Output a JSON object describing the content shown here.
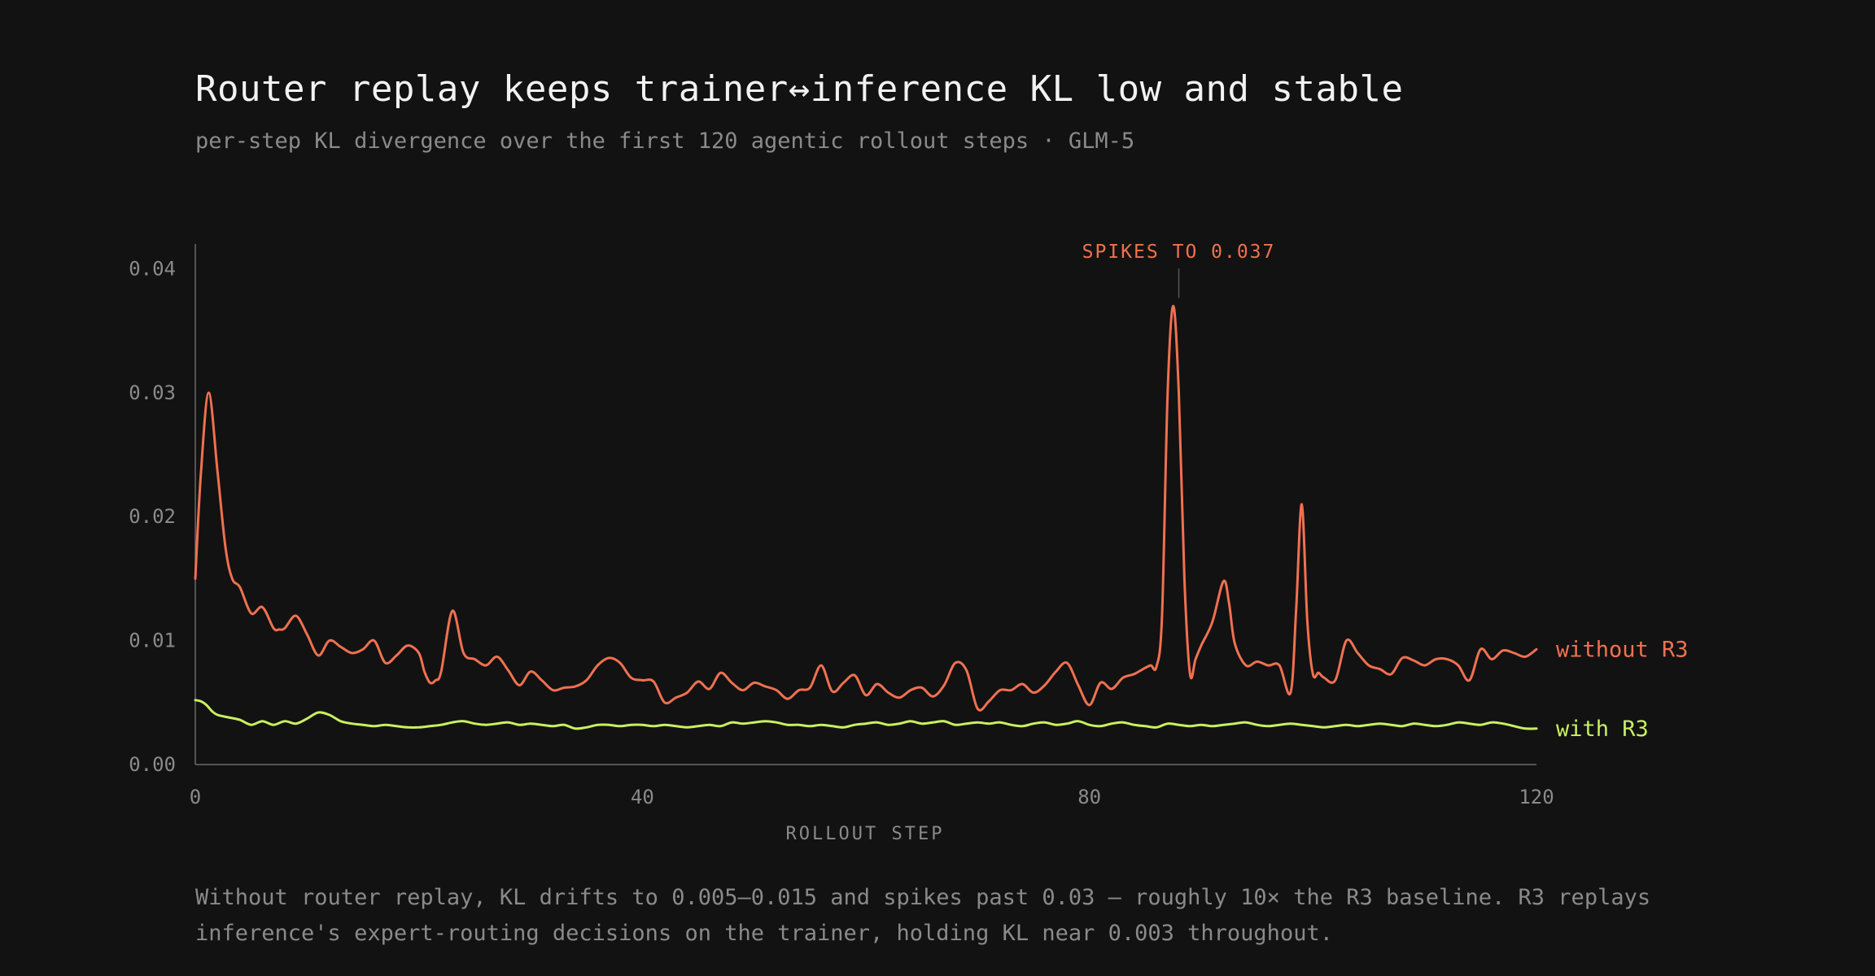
{
  "header": {
    "title": "Router replay keeps trainer↔inference KL low and stable",
    "subtitle": "per-step KL divergence over the first 120 agentic rollout steps · GLM-5"
  },
  "caption": {
    "line1": "Without router replay, KL drifts to 0.005–0.015 and spikes past 0.03 — roughly 10× the R3 baseline. R3 replays",
    "line2": "inference's expert-routing decisions on the trainer, holding KL near 0.003 throughout."
  },
  "colors": {
    "background": "#121212",
    "without_r3": "#f07150",
    "with_r3": "#c8f060",
    "axis": "#6a6a6a",
    "text_muted": "#8a8a8a"
  },
  "chart_data": {
    "type": "line",
    "title": "",
    "xlabel": "ROLLOUT STEP",
    "ylabel": "",
    "xlim": [
      0,
      120
    ],
    "ylim": [
      0,
      0.042
    ],
    "xticks": [
      0,
      40,
      80,
      120
    ],
    "xtick_labels": [
      "0",
      "40",
      "80",
      "120"
    ],
    "yticks": [
      0,
      0.01,
      0.02,
      0.03,
      0.04
    ],
    "ytick_labels": [
      "0.00",
      "0.01",
      "0.02",
      "0.03",
      "0.04"
    ],
    "grid": false,
    "legend": "inline labels at right end of lines",
    "annotation": {
      "text": "SPIKES TO 0.037",
      "x": 88,
      "y": 0.037
    },
    "series": [
      {
        "name": "without R3",
        "x": [
          0,
          0.5,
          1.2,
          2,
          2.7,
          3.3,
          4,
          5,
          6,
          7,
          7.5,
          8,
          9,
          10,
          11,
          12,
          13,
          14,
          15,
          16,
          17,
          18,
          19,
          20,
          20.5,
          21,
          21.5,
          22,
          23,
          24,
          25,
          26,
          27,
          28,
          29,
          30,
          31,
          32,
          33,
          34,
          35,
          36,
          37,
          38,
          39,
          40,
          41,
          42,
          43,
          44,
          45,
          46,
          47,
          48,
          49,
          50,
          51,
          52,
          53,
          54,
          55,
          56,
          57,
          58,
          59,
          60,
          61,
          62,
          63,
          64,
          65,
          66,
          67,
          68,
          69,
          70,
          71,
          72,
          73,
          74,
          75,
          76,
          77,
          78,
          79,
          80,
          81,
          82,
          83,
          84,
          85,
          85.5,
          86,
          86.5,
          87,
          87.5,
          88,
          88.5,
          89,
          89.5,
          90,
          91,
          92,
          92.5,
          93,
          94,
          95,
          96,
          97,
          98,
          98.5,
          99,
          99.5,
          100,
          100.5,
          101,
          102,
          103,
          104,
          105,
          106,
          107,
          108,
          109,
          110,
          111,
          112,
          113,
          114,
          115,
          116,
          117,
          118,
          119,
          120
        ],
        "values": [
          0.015,
          0.0235,
          0.03,
          0.0235,
          0.0175,
          0.015,
          0.0143,
          0.0122,
          0.0127,
          0.011,
          0.0109,
          0.011,
          0.012,
          0.0105,
          0.0088,
          0.01,
          0.0095,
          0.009,
          0.0093,
          0.01,
          0.0082,
          0.0088,
          0.0096,
          0.009,
          0.0075,
          0.0066,
          0.0068,
          0.0075,
          0.0124,
          0.009,
          0.0085,
          0.008,
          0.0087,
          0.0076,
          0.0064,
          0.0075,
          0.0068,
          0.006,
          0.0062,
          0.0063,
          0.0068,
          0.008,
          0.0086,
          0.0082,
          0.007,
          0.0068,
          0.0067,
          0.005,
          0.0054,
          0.0058,
          0.0067,
          0.0061,
          0.0074,
          0.0066,
          0.006,
          0.0066,
          0.0063,
          0.006,
          0.0053,
          0.006,
          0.0062,
          0.008,
          0.0059,
          0.0066,
          0.0072,
          0.0056,
          0.0065,
          0.0058,
          0.0054,
          0.006,
          0.0062,
          0.0055,
          0.0064,
          0.0082,
          0.0076,
          0.0045,
          0.0051,
          0.006,
          0.006,
          0.0065,
          0.0058,
          0.0064,
          0.0075,
          0.0082,
          0.0064,
          0.0048,
          0.0066,
          0.0061,
          0.007,
          0.0073,
          0.0078,
          0.008,
          0.0079,
          0.012,
          0.03,
          0.037,
          0.03,
          0.015,
          0.0073,
          0.0085,
          0.0096,
          0.0115,
          0.0148,
          0.013,
          0.0098,
          0.008,
          0.0083,
          0.008,
          0.008,
          0.0058,
          0.0125,
          0.021,
          0.0115,
          0.0073,
          0.0074,
          0.007,
          0.0068,
          0.01,
          0.009,
          0.008,
          0.0077,
          0.0073,
          0.0086,
          0.0084,
          0.008,
          0.0085,
          0.0085,
          0.008,
          0.0068,
          0.0093,
          0.0085,
          0.0092,
          0.009,
          0.0087,
          0.0093
        ]
      },
      {
        "name": "with R3",
        "x": [
          0,
          0.5,
          1,
          1.5,
          2,
          3,
          4,
          5,
          6,
          7,
          8,
          9,
          10,
          11,
          12,
          13,
          14,
          15,
          16,
          17,
          18,
          19,
          20,
          21,
          22,
          23,
          24,
          25,
          26,
          27,
          28,
          29,
          30,
          31,
          32,
          33,
          34,
          35,
          36,
          37,
          38,
          39,
          40,
          41,
          42,
          43,
          44,
          45,
          46,
          47,
          48,
          49,
          50,
          51,
          52,
          53,
          54,
          55,
          56,
          57,
          58,
          59,
          60,
          61,
          62,
          63,
          64,
          65,
          66,
          67,
          68,
          69,
          70,
          71,
          72,
          73,
          74,
          75,
          76,
          77,
          78,
          79,
          80,
          81,
          82,
          83,
          84,
          85,
          86,
          87,
          88,
          89,
          90,
          91,
          92,
          93,
          94,
          95,
          96,
          97,
          98,
          99,
          100,
          101,
          102,
          103,
          104,
          105,
          106,
          107,
          108,
          109,
          110,
          111,
          112,
          113,
          114,
          115,
          116,
          117,
          118,
          119,
          120
        ],
        "values": [
          0.0052,
          0.0051,
          0.0048,
          0.0043,
          0.004,
          0.0038,
          0.0036,
          0.0032,
          0.0035,
          0.0032,
          0.0035,
          0.0033,
          0.0037,
          0.0042,
          0.004,
          0.0035,
          0.0033,
          0.0032,
          0.0031,
          0.0032,
          0.0031,
          0.003,
          0.003,
          0.0031,
          0.0032,
          0.0034,
          0.0035,
          0.0033,
          0.0032,
          0.0033,
          0.0034,
          0.0032,
          0.0033,
          0.0032,
          0.0031,
          0.0032,
          0.0029,
          0.003,
          0.0032,
          0.0032,
          0.0031,
          0.0032,
          0.0032,
          0.0031,
          0.0032,
          0.0031,
          0.003,
          0.0031,
          0.0032,
          0.0031,
          0.0034,
          0.0033,
          0.0034,
          0.0035,
          0.0034,
          0.0032,
          0.0032,
          0.0031,
          0.0032,
          0.0031,
          0.003,
          0.0032,
          0.0033,
          0.0034,
          0.0032,
          0.0033,
          0.0035,
          0.0033,
          0.0034,
          0.0035,
          0.0032,
          0.0033,
          0.0034,
          0.0033,
          0.0034,
          0.0032,
          0.0031,
          0.0033,
          0.0034,
          0.0032,
          0.0033,
          0.0035,
          0.0032,
          0.0031,
          0.0033,
          0.0034,
          0.0032,
          0.0031,
          0.003,
          0.0033,
          0.0032,
          0.0031,
          0.0032,
          0.0031,
          0.0032,
          0.0033,
          0.0034,
          0.0032,
          0.0031,
          0.0032,
          0.0033,
          0.0032,
          0.0031,
          0.003,
          0.0031,
          0.0032,
          0.0031,
          0.0032,
          0.0033,
          0.0032,
          0.0031,
          0.0033,
          0.0032,
          0.0031,
          0.0032,
          0.0034,
          0.0033,
          0.0032,
          0.0034,
          0.0033,
          0.0031,
          0.0029,
          0.0029
        ]
      }
    ]
  }
}
